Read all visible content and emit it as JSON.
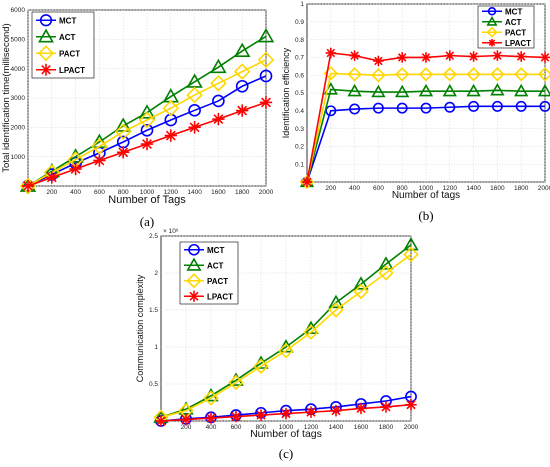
{
  "colors": {
    "MCT": "#0000ff",
    "ACT": "#008000",
    "PACT": "#ffd700",
    "LPACT": "#ff0000"
  },
  "chart_data": [
    {
      "id": "a",
      "type": "line",
      "caption": "(a)",
      "xlabel": "Number of Tags",
      "ylabel": "Total identification time(millisecond)",
      "xlim": [
        0,
        2000
      ],
      "ylim": [
        0,
        6000
      ],
      "xticks": [
        0,
        200,
        400,
        600,
        800,
        1000,
        1200,
        1400,
        1600,
        1800,
        2000
      ],
      "yticks": [
        0,
        1000,
        2000,
        3000,
        4000,
        5000,
        6000
      ],
      "grid": true,
      "legend": "top-left",
      "x": [
        0,
        200,
        400,
        600,
        800,
        1000,
        1200,
        1400,
        1600,
        1800,
        2000
      ],
      "series": [
        {
          "name": "MCT",
          "marker": "circle",
          "values": [
            0,
            390,
            780,
            1130,
            1500,
            1900,
            2250,
            2580,
            2900,
            3400,
            3750
          ]
        },
        {
          "name": "ACT",
          "marker": "triangle",
          "values": [
            0,
            500,
            1000,
            1500,
            2050,
            2500,
            3050,
            3550,
            4050,
            4600,
            5100
          ]
        },
        {
          "name": "PACT",
          "marker": "diamond",
          "values": [
            0,
            460,
            900,
            1350,
            1850,
            2250,
            2650,
            3100,
            3500,
            3900,
            4300
          ]
        },
        {
          "name": "LPACT",
          "marker": "star",
          "values": [
            0,
            290,
            580,
            870,
            1150,
            1430,
            1720,
            2000,
            2280,
            2570,
            2850
          ]
        }
      ]
    },
    {
      "id": "b",
      "type": "line",
      "caption": "(b)",
      "xlabel": "Number of tags",
      "ylabel": "Identification efficiency",
      "xlim": [
        0,
        2000
      ],
      "ylim": [
        0,
        1
      ],
      "xticks": [
        200,
        400,
        600,
        800,
        1000,
        1200,
        1400,
        1600,
        1800,
        2000
      ],
      "yticks": [
        0,
        0.1,
        0.2,
        0.3,
        0.4,
        0.5,
        0.6,
        0.7,
        0.8,
        0.9,
        1
      ],
      "grid": true,
      "legend": "top-right",
      "x": [
        0,
        200,
        400,
        600,
        800,
        1000,
        1200,
        1400,
        1600,
        1800,
        2000
      ],
      "series": [
        {
          "name": "MCT",
          "marker": "circle",
          "values": [
            0,
            0.4,
            0.41,
            0.415,
            0.415,
            0.415,
            0.42,
            0.425,
            0.425,
            0.425,
            0.425
          ]
        },
        {
          "name": "ACT",
          "marker": "triangle",
          "values": [
            0,
            0.52,
            0.51,
            0.505,
            0.505,
            0.51,
            0.51,
            0.51,
            0.515,
            0.51,
            0.51
          ]
        },
        {
          "name": "PACT",
          "marker": "diamond",
          "values": [
            0,
            0.61,
            0.605,
            0.6,
            0.605,
            0.605,
            0.605,
            0.605,
            0.605,
            0.605,
            0.605
          ]
        },
        {
          "name": "LPACT",
          "marker": "star",
          "values": [
            0,
            0.725,
            0.71,
            0.68,
            0.7,
            0.7,
            0.71,
            0.705,
            0.71,
            0.705,
            0.7
          ]
        }
      ]
    },
    {
      "id": "c",
      "type": "line",
      "caption": "(c)",
      "xlabel": "Number of tags",
      "ylabel": "Communication complexity",
      "xlim": [
        0,
        2000
      ],
      "ylim": [
        0,
        2.5
      ],
      "y_multiplier": "× 10⁶",
      "xticks": [
        200,
        400,
        600,
        800,
        1000,
        1200,
        1400,
        1600,
        1800,
        2000
      ],
      "yticks": [
        0,
        0.5,
        1,
        1.5,
        2,
        2.5
      ],
      "grid": true,
      "legend": "top-left",
      "x": [
        0,
        200,
        400,
        600,
        800,
        1000,
        1200,
        1400,
        1600,
        1800,
        2000
      ],
      "series": [
        {
          "name": "MCT",
          "marker": "circle",
          "values": [
            0,
            0.03,
            0.05,
            0.08,
            0.11,
            0.14,
            0.16,
            0.19,
            0.23,
            0.27,
            0.33
          ]
        },
        {
          "name": "ACT",
          "marker": "triangle",
          "values": [
            0.05,
            0.16,
            0.34,
            0.55,
            0.78,
            1.0,
            1.25,
            1.6,
            1.85,
            2.12,
            2.38
          ]
        },
        {
          "name": "PACT",
          "marker": "diamond",
          "values": [
            0.05,
            0.14,
            0.31,
            0.52,
            0.74,
            0.95,
            1.2,
            1.5,
            1.75,
            2.0,
            2.25
          ]
        },
        {
          "name": "LPACT",
          "marker": "star",
          "values": [
            0,
            0.02,
            0.04,
            0.06,
            0.08,
            0.1,
            0.12,
            0.14,
            0.17,
            0.19,
            0.22
          ]
        }
      ]
    }
  ]
}
